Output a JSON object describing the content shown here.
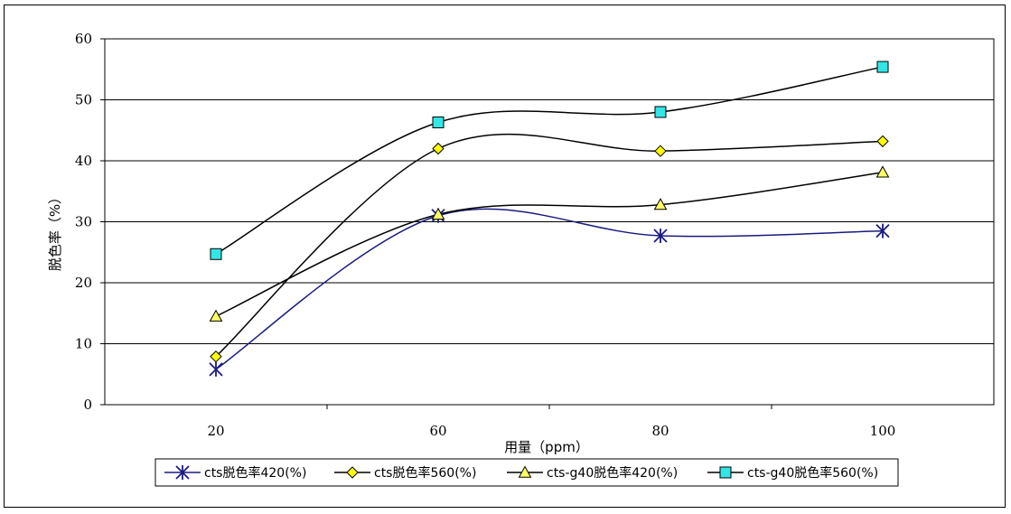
{
  "chart_data": {
    "type": "line",
    "title": "",
    "xlabel": "用量（ppm）",
    "ylabel": "脱色率（%）",
    "categories": [
      "20",
      "60",
      "80",
      "100"
    ],
    "ylim": [
      0,
      60
    ],
    "yticks": [
      0,
      10,
      20,
      30,
      40,
      50,
      60
    ],
    "grid": true,
    "legend_position": "bottom",
    "smooth": true,
    "series": [
      {
        "name": "cts脱色率420(%)",
        "values": [
          5.8,
          31.0,
          27.7,
          28.5
        ],
        "color": "#1a1a80",
        "marker": "asterisk",
        "marker_fill": "#1a1a80"
      },
      {
        "name": "cts脱色率560(%)",
        "values": [
          7.9,
          42.0,
          41.6,
          43.2
        ],
        "color": "#000000",
        "marker": "diamond",
        "marker_fill": "#ffff00"
      },
      {
        "name": "cts-g40脱色率420(%)",
        "values": [
          14.5,
          31.2,
          32.8,
          38.1
        ],
        "color": "#000000",
        "marker": "triangle",
        "marker_fill": "#ffff66"
      },
      {
        "name": "cts-g40脱色率560(%)",
        "values": [
          24.7,
          46.3,
          48.0,
          55.4
        ],
        "color": "#000000",
        "marker": "square",
        "marker_fill": "#33e6e6"
      }
    ]
  }
}
